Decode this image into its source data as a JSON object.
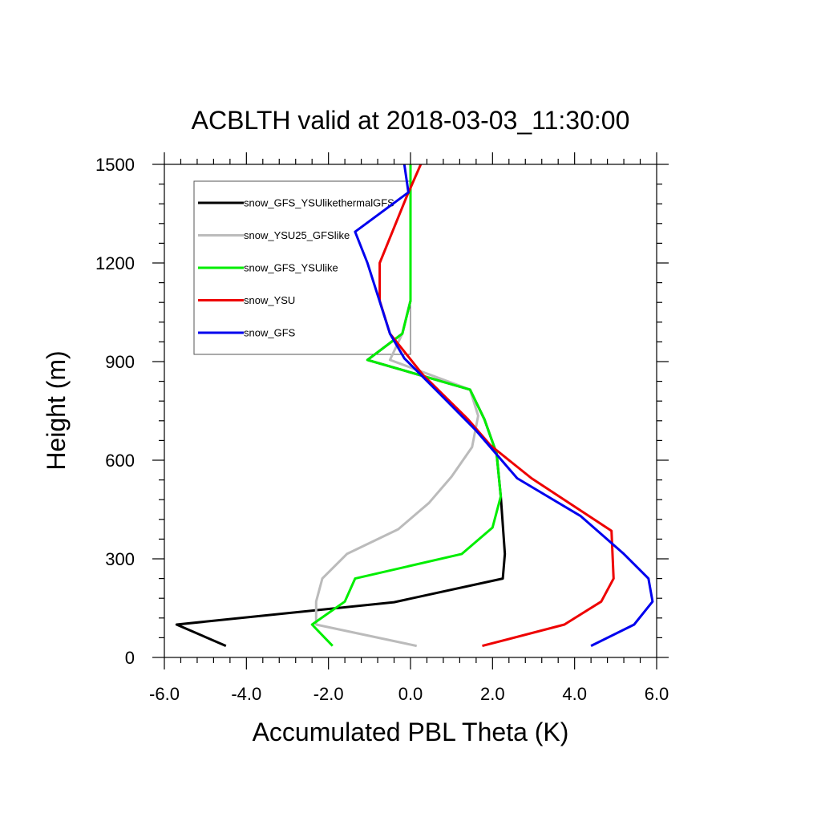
{
  "chart_data": {
    "type": "line",
    "title": "ACBLTH valid at 2018-03-03_11:30:00",
    "xlabel": "Accumulated PBL Theta (K)",
    "ylabel": "Height (m)",
    "xlim": [
      -6.0,
      6.0
    ],
    "ylim": [
      0,
      1500
    ],
    "xticks": [
      -6.0,
      -4.0,
      -2.0,
      0.0,
      2.0,
      4.0,
      6.0
    ],
    "xtick_labels": [
      "-6.0",
      "-4.0",
      "-2.0",
      "0.0",
      "2.0",
      "4.0",
      "6.0"
    ],
    "yticks": [
      0,
      300,
      600,
      900,
      1200,
      1500
    ],
    "ytick_labels": [
      "0",
      "300",
      "600",
      "900",
      "1200",
      "1500"
    ],
    "grid": false,
    "legend_position": "top-left",
    "series": [
      {
        "name": "snow_GFS_YSUlikethermalGFS",
        "color": "#000000",
        "points": [
          [
            -4.5,
            35
          ],
          [
            -5.7,
            100
          ],
          [
            -0.4,
            168
          ],
          [
            2.25,
            240
          ],
          [
            2.3,
            315
          ],
          [
            2.2,
            490
          ],
          [
            2.1,
            620
          ],
          [
            1.8,
            725
          ],
          [
            1.45,
            815
          ],
          [
            -1.05,
            905
          ],
          [
            -0.2,
            985
          ],
          [
            0.0,
            1085
          ],
          [
            0.0,
            1500
          ]
        ]
      },
      {
        "name": "snow_YSU25_GFSlike",
        "color": "#bbbbbb",
        "points": [
          [
            0.15,
            35
          ],
          [
            -2.3,
            100
          ],
          [
            -2.3,
            170
          ],
          [
            -2.15,
            240
          ],
          [
            -1.55,
            315
          ],
          [
            -0.3,
            390
          ],
          [
            0.45,
            470
          ],
          [
            1.0,
            550
          ],
          [
            1.5,
            640
          ],
          [
            1.65,
            735
          ],
          [
            1.45,
            815
          ],
          [
            -0.5,
            905
          ],
          [
            -0.2,
            985
          ],
          [
            0.0,
            1085
          ],
          [
            0.0,
            1500
          ]
        ]
      },
      {
        "name": "snow_GFS_YSUlike",
        "color": "#00ee00",
        "points": [
          [
            -1.9,
            35
          ],
          [
            -2.4,
            100
          ],
          [
            -1.6,
            170
          ],
          [
            -1.35,
            240
          ],
          [
            1.25,
            315
          ],
          [
            2.0,
            395
          ],
          [
            2.2,
            490
          ],
          [
            2.1,
            620
          ],
          [
            1.8,
            725
          ],
          [
            1.45,
            815
          ],
          [
            -1.05,
            905
          ],
          [
            -0.2,
            985
          ],
          [
            0.0,
            1085
          ],
          [
            0.0,
            1500
          ]
        ]
      },
      {
        "name": "snow_YSU",
        "color": "#ee0000",
        "points": [
          [
            1.75,
            35
          ],
          [
            3.75,
            100
          ],
          [
            4.65,
            170
          ],
          [
            4.95,
            240
          ],
          [
            4.9,
            385
          ],
          [
            2.95,
            545
          ],
          [
            1.95,
            645
          ],
          [
            1.4,
            725
          ],
          [
            0.3,
            860
          ],
          [
            -0.5,
            985
          ],
          [
            -0.75,
            1085
          ],
          [
            -0.75,
            1200
          ],
          [
            -0.1,
            1400
          ],
          [
            0.25,
            1500
          ]
        ]
      },
      {
        "name": "snow_GFS",
        "color": "#0000ee",
        "points": [
          [
            4.4,
            35
          ],
          [
            5.45,
            100
          ],
          [
            5.9,
            170
          ],
          [
            5.8,
            240
          ],
          [
            5.2,
            315
          ],
          [
            4.15,
            430
          ],
          [
            2.6,
            545
          ],
          [
            1.6,
            690
          ],
          [
            0.65,
            810
          ],
          [
            -0.15,
            910
          ],
          [
            -0.5,
            985
          ],
          [
            -1.05,
            1200
          ],
          [
            -1.35,
            1295
          ],
          [
            -0.05,
            1415
          ],
          [
            -0.15,
            1500
          ]
        ]
      }
    ]
  }
}
